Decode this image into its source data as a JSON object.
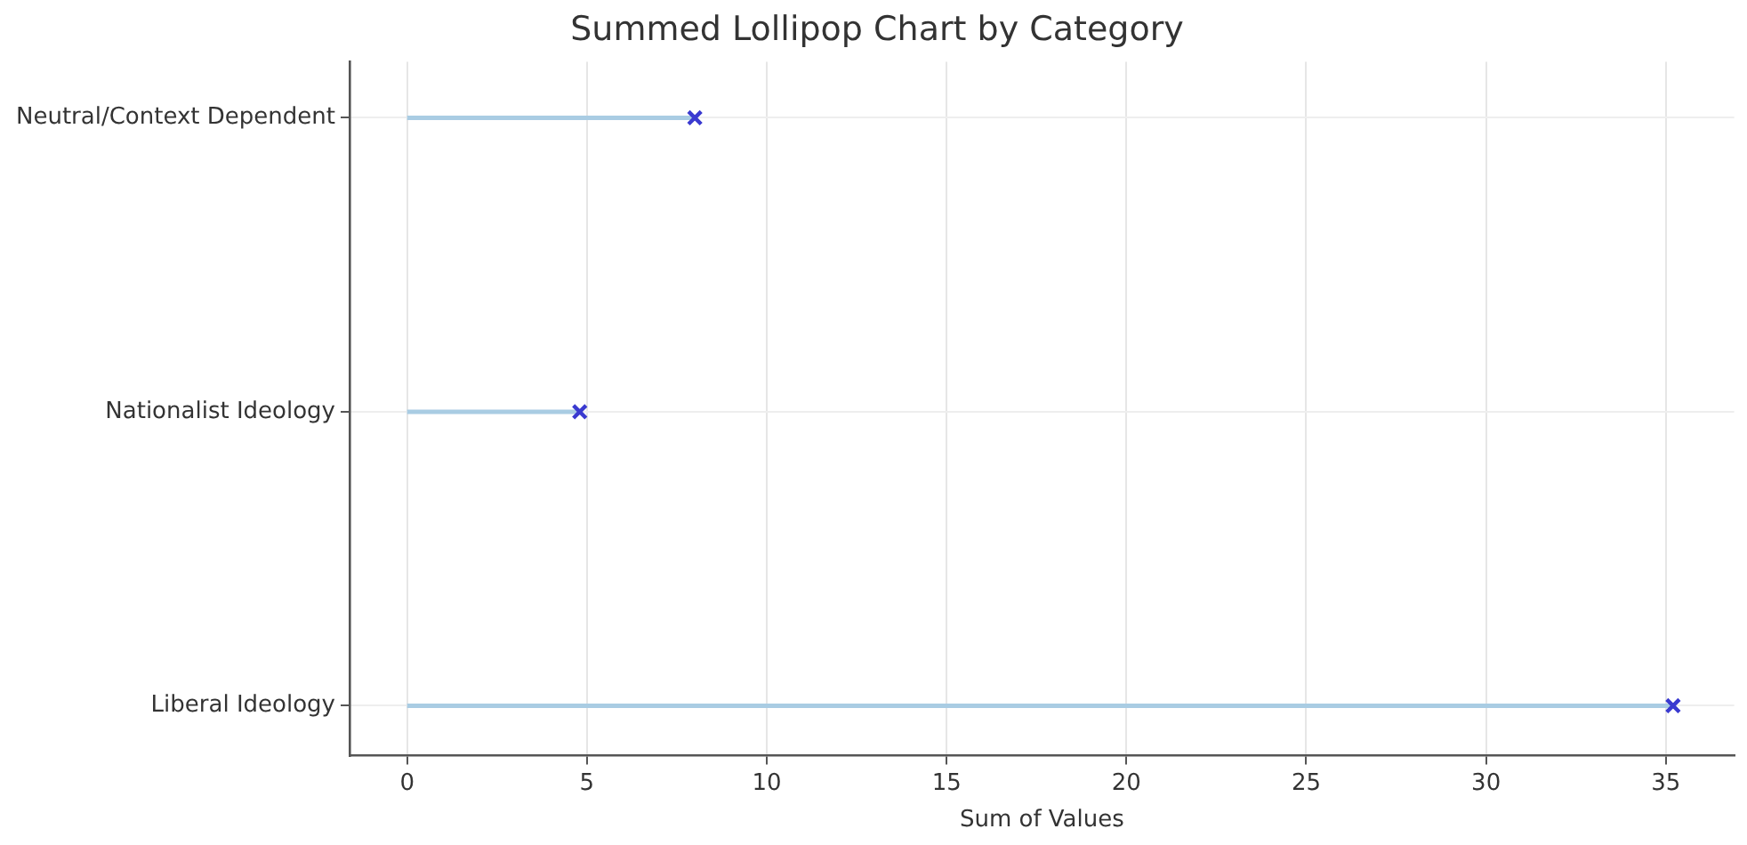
{
  "chart_data": {
    "type": "lollipop",
    "orientation": "horizontal",
    "title": "Summed Lollipop Chart by Category",
    "xlabel": "Sum of Values",
    "categories": [
      "Neutral/Context Dependent",
      "Nationalist Ideology",
      "Liberal Ideology"
    ],
    "series": [
      {
        "color": "#3a3ad0",
        "values": [
          8.0,
          4.8,
          35.2
        ]
      }
    ],
    "xlim": [
      -1.6,
      36.9
    ],
    "xticks": [
      0,
      5,
      10,
      15,
      20,
      25,
      30,
      35
    ],
    "grid": true,
    "marker": "cross",
    "legend": false
  }
}
